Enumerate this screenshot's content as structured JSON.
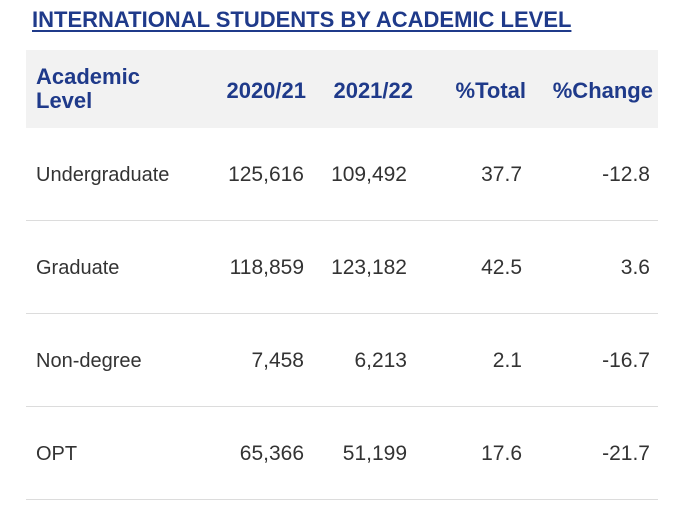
{
  "title": "INTERNATIONAL STUDENTS BY ACADEMIC LEVEL",
  "chart_data": {
    "type": "table",
    "title": "INTERNATIONAL STUDENTS BY ACADEMIC LEVEL",
    "columns": [
      "Academic Level",
      "2020/21",
      "2021/22",
      "%Total",
      "%Change"
    ],
    "rows": [
      {
        "label": "Undergraduate",
        "y2020_21": "125,616",
        "y2021_22": "109,492",
        "pct_total": "37.7",
        "pct_change": "-12.8"
      },
      {
        "label": "Graduate",
        "y2020_21": "118,859",
        "y2021_22": "123,182",
        "pct_total": "42.5",
        "pct_change": "3.6"
      },
      {
        "label": "Non-degree",
        "y2020_21": "7,458",
        "y2021_22": "6,213",
        "pct_total": "2.1",
        "pct_change": "-16.7"
      },
      {
        "label": "OPT",
        "y2020_21": "65,366",
        "y2021_22": "51,199",
        "pct_total": "17.6",
        "pct_change": "-21.7"
      }
    ]
  },
  "colors": {
    "title": "#1f3a8a",
    "header_text": "#1f3a8a",
    "header_bg": "#f2f2f2",
    "body_text": "#333333",
    "row_divider": "#dcdcdc"
  }
}
